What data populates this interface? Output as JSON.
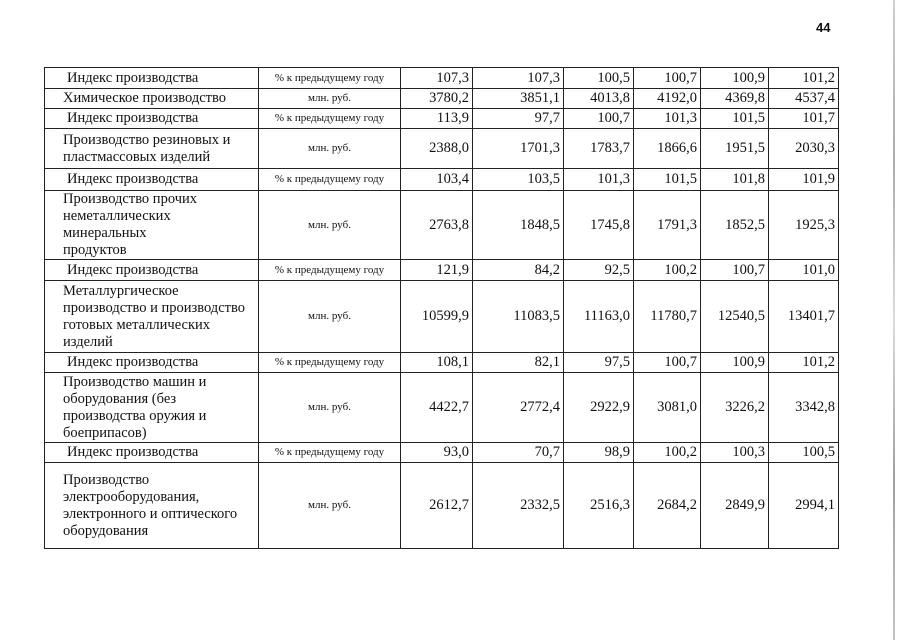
{
  "page_number": "44",
  "table": {
    "rows": [
      {
        "name": "Индекс производства",
        "unit": "% к предыдущему году",
        "values": [
          "107,3",
          "107,3",
          "100,5",
          "100,7",
          "100,9",
          "101,2"
        ],
        "index": true
      },
      {
        "name": "Химическое производство",
        "unit": "млн. руб.",
        "values": [
          "3780,2",
          "3851,1",
          "4013,8",
          "4192,0",
          "4369,8",
          "4537,4"
        ]
      },
      {
        "name": "Индекс производства",
        "unit": "% к предыдущему году",
        "values": [
          "113,9",
          "97,7",
          "100,7",
          "101,3",
          "101,5",
          "101,7"
        ],
        "index": true
      },
      {
        "name": "Производство резиновых и\nпластмассовых изделий",
        "unit": "млн. руб.",
        "values": [
          "2388,0",
          "1701,3",
          "1783,7",
          "1866,6",
          "1951,5",
          "2030,3"
        ]
      },
      {
        "name": "Индекс производства",
        "unit": "% к предыдущему году",
        "values": [
          "103,4",
          "103,5",
          "101,3",
          "101,5",
          "101,8",
          "101,9"
        ],
        "index": true
      },
      {
        "name": "Производство прочих\nнеметаллических минеральных\nпродуктов",
        "unit": "млн. руб.",
        "values": [
          "2763,8",
          "1848,5",
          "1745,8",
          "1791,3",
          "1852,5",
          "1925,3"
        ]
      },
      {
        "name": "Индекс производства",
        "unit": "% к предыдущему году",
        "values": [
          "121,9",
          "84,2",
          "92,5",
          "100,2",
          "100,7",
          "101,0"
        ],
        "index": true
      },
      {
        "name": "Металлургическое\nпроизводство и производство\nготовых металлических\nизделий",
        "unit": "млн. руб.",
        "values": [
          "10599,9",
          "11083,5",
          "11163,0",
          "11780,7",
          "12540,5",
          "13401,7"
        ]
      },
      {
        "name": "Индекс производства",
        "unit": "% к предыдущему году",
        "values": [
          "108,1",
          "82,1",
          "97,5",
          "100,7",
          "100,9",
          "101,2"
        ],
        "index": true
      },
      {
        "name": "Производство машин и\nоборудования (без\nпроизводства оружия и\nбоеприпасов)",
        "unit": "млн. руб.",
        "values": [
          "4422,7",
          "2772,4",
          "2922,9",
          "3081,0",
          "3226,2",
          "3342,8"
        ]
      },
      {
        "name": "Индекс производства",
        "unit": "% к предыдущему году",
        "values": [
          "93,0",
          "70,7",
          "98,9",
          "100,2",
          "100,3",
          "100,5"
        ],
        "index": true
      },
      {
        "name": "Производство\nэлектрооборудования,\nэлектронного и оптического\nоборудования",
        "unit": "млн. руб.",
        "values": [
          "2612,7",
          "2332,5",
          "2516,3",
          "2684,2",
          "2849,9",
          "2994,1"
        ]
      }
    ]
  }
}
